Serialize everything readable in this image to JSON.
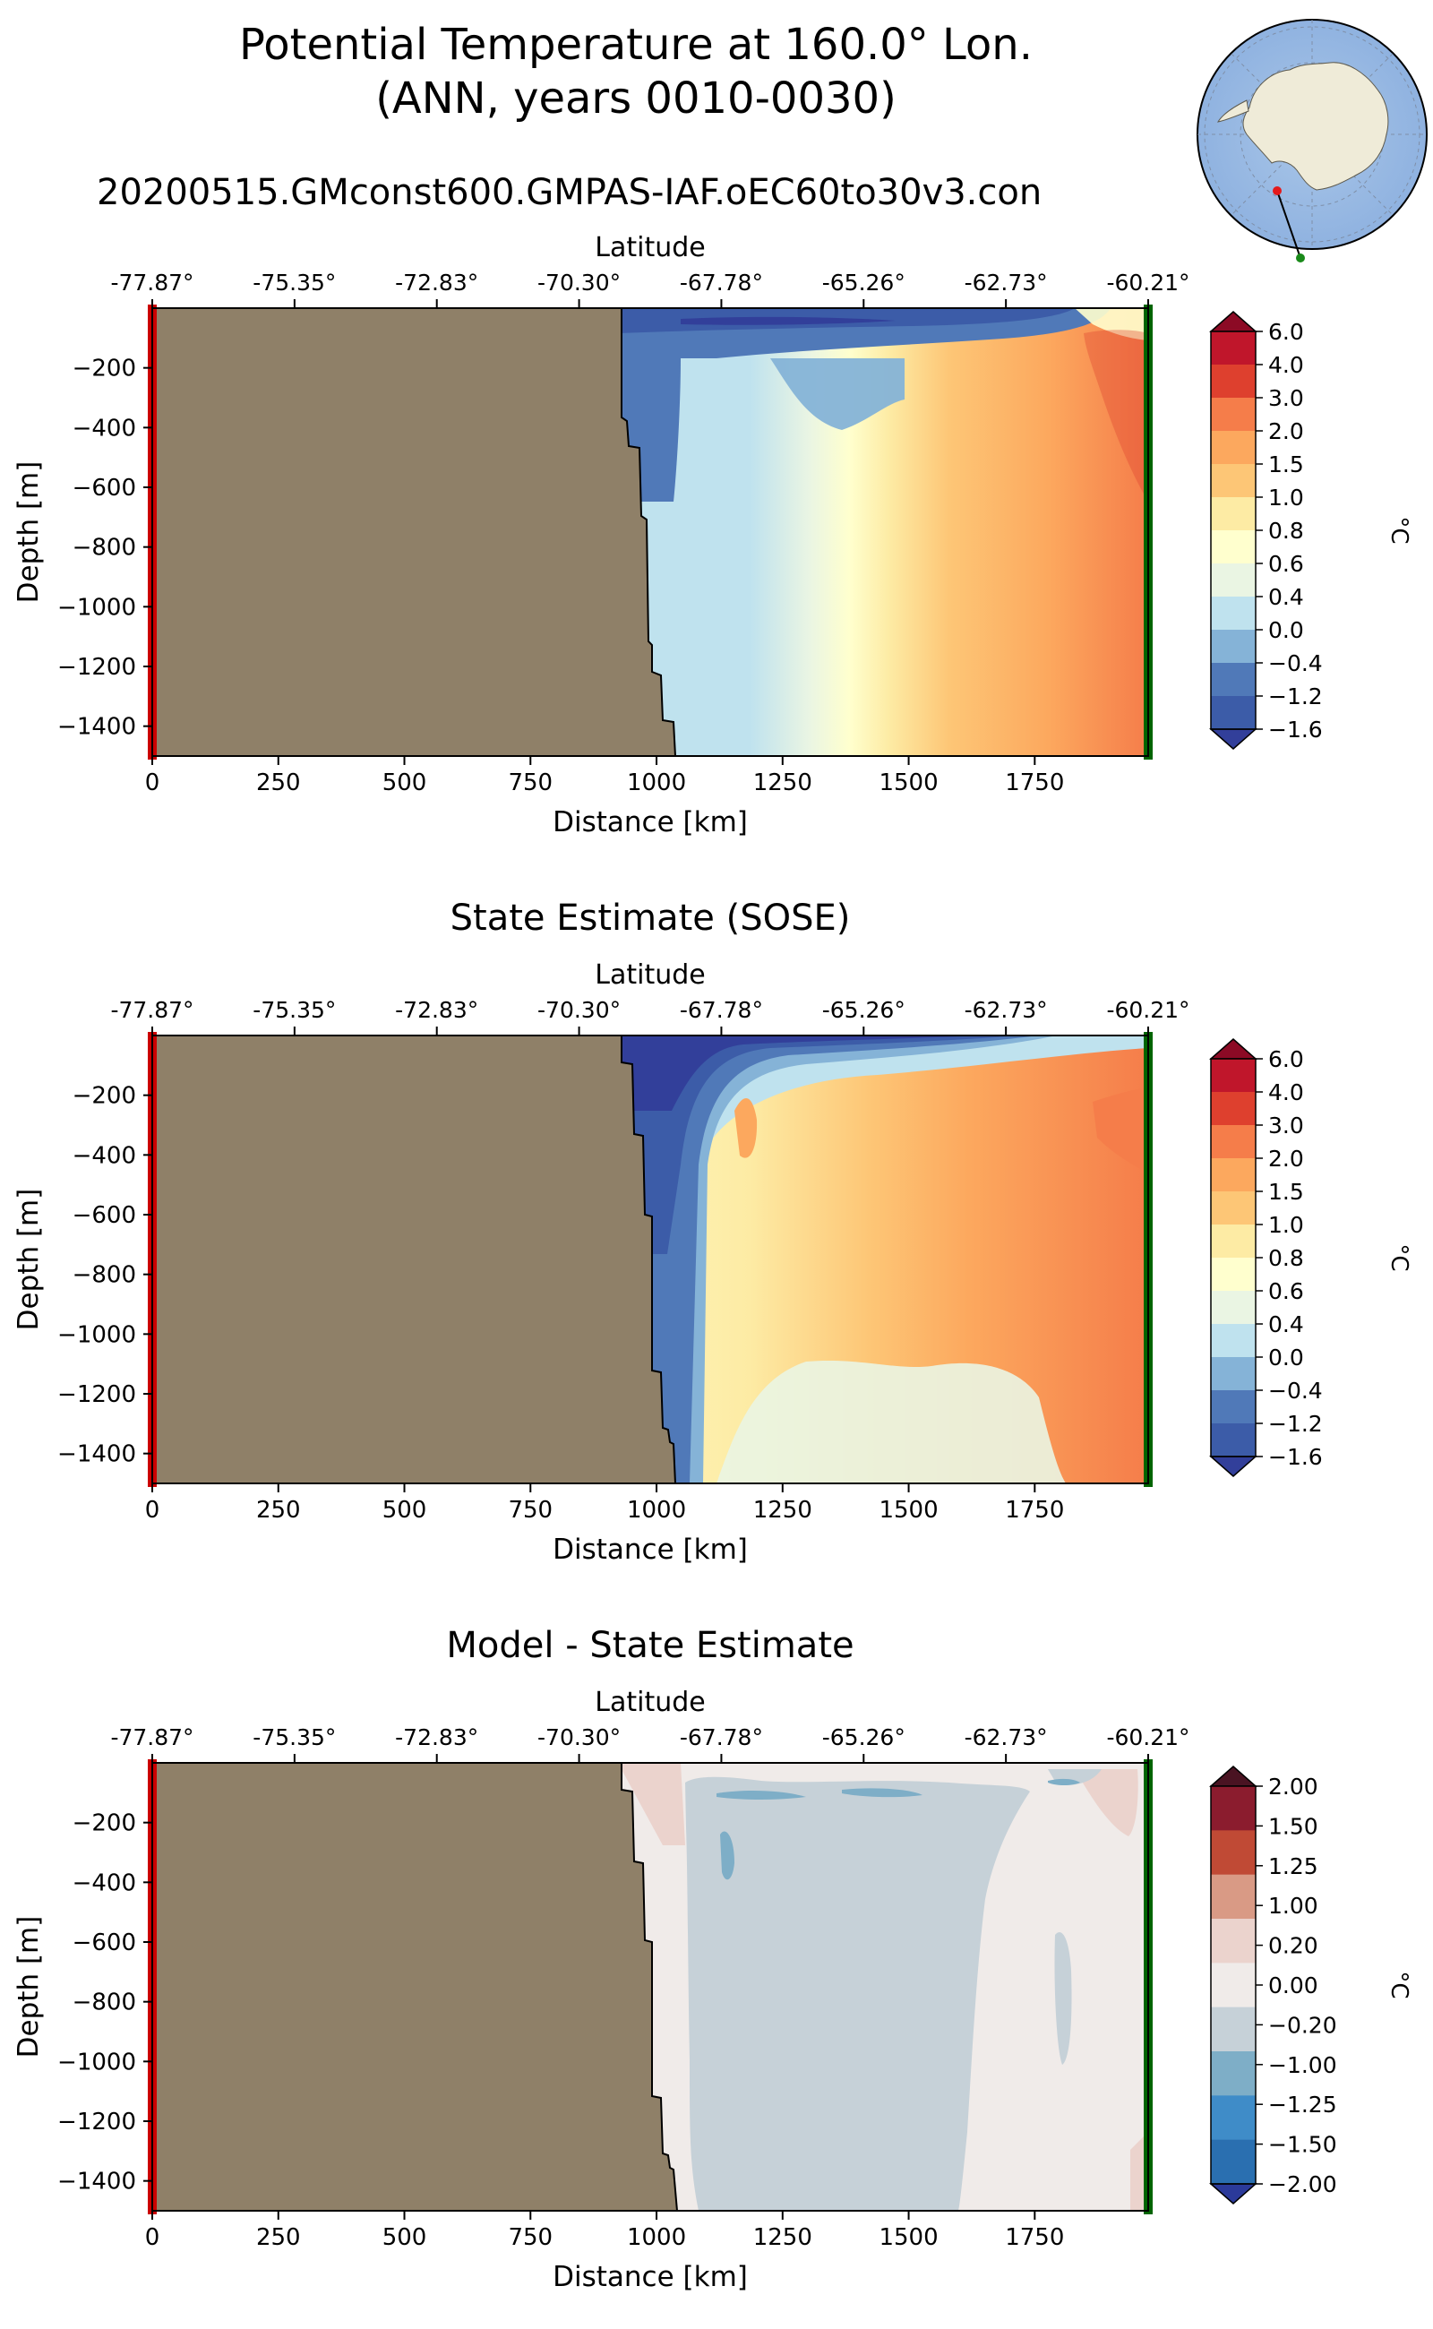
{
  "figure": {
    "title_line1": "Potential Temperature at 160.0° Lon.",
    "title_line2": "(ANN, years 0010-0030)",
    "subtitle": "20200515.GMconst600.GMPAS-IAF.oEC60to30v3.con"
  },
  "inset_map": {
    "projection": "south-polar-stereographic",
    "feature": "Antarctica",
    "marker_start_color": "#e41a1c",
    "marker_end_color": "#1a8a1a"
  },
  "colors": {
    "land": "#8f8068",
    "start_line": "#cc0000",
    "end_line": "#006400",
    "temp_levels": [
      "#323f9a",
      "#3c5ca8",
      "#5079b8",
      "#85b3d7",
      "#bfe2ee",
      "#eaf5e3",
      "#ffffce",
      "#fdeba4",
      "#fdc676",
      "#fca85e",
      "#f57d4a",
      "#de402e",
      "#c0162b",
      "#8c0a25"
    ],
    "diff_levels": [
      "#2b3a9a",
      "#2a6fb0",
      "#3f8cc8",
      "#7eaec7",
      "#c6d1d8",
      "#f0ebe9",
      "#ebd3cd",
      "#d99a85",
      "#c04a35",
      "#8b1c2e",
      "#4a1322"
    ]
  },
  "chart_data": [
    {
      "type": "heatmap",
      "panel": "model",
      "title": "",
      "top_axis_label": "Latitude",
      "top_ticks": [
        "-77.87°",
        "-75.35°",
        "-72.83°",
        "-70.30°",
        "-67.78°",
        "-65.26°",
        "-62.73°",
        "-60.21°"
      ],
      "xlabel": "Distance [km]",
      "ylabel": "Depth [m]",
      "xlim": [
        0,
        1975
      ],
      "ylim": [
        -1500,
        0
      ],
      "x_ticks": [
        0,
        250,
        500,
        750,
        1000,
        1250,
        1500,
        1750
      ],
      "y_ticks": [
        -200,
        -400,
        -600,
        -800,
        -1000,
        -1200,
        -1400
      ],
      "colorbar": {
        "label": "°C",
        "ticks": [
          "6.0",
          "4.0",
          "3.0",
          "2.0",
          "1.5",
          "1.0",
          "0.8",
          "0.6",
          "0.4",
          "0.0",
          "−0.4",
          "−1.2",
          "−1.6"
        ]
      },
      "land_boundary_km": [
        [
          0,
          925
        ],
        [
          -30,
          925
        ],
        [
          -80,
          935
        ],
        [
          -120,
          950
        ],
        [
          -150,
          970
        ],
        [
          -180,
          975
        ],
        [
          -200,
          985
        ],
        [
          -250,
          990
        ],
        [
          -300,
          1000
        ],
        [
          -360,
          1005
        ],
        [
          -420,
          1015
        ],
        [
          -450,
          1020
        ],
        [
          -520,
          1030
        ],
        [
          -580,
          1040
        ]
      ],
      "value_at_surface": {
        "1000-1500km": -1.6,
        "1900km": 0.6
      },
      "warmest_core_c": 3.0
    },
    {
      "type": "heatmap",
      "panel": "sose",
      "title": "State Estimate (SOSE)",
      "top_axis_label": "Latitude",
      "top_ticks": [
        "-77.87°",
        "-75.35°",
        "-72.83°",
        "-70.30°",
        "-67.78°",
        "-65.26°",
        "-62.73°",
        "-60.21°"
      ],
      "xlabel": "Distance [km]",
      "ylabel": "Depth [m]",
      "xlim": [
        0,
        1975
      ],
      "ylim": [
        -1500,
        0
      ],
      "x_ticks": [
        0,
        250,
        500,
        750,
        1000,
        1250,
        1500,
        1750
      ],
      "y_ticks": [
        -200,
        -400,
        -600,
        -800,
        -1000,
        -1200,
        -1400
      ],
      "colorbar": {
        "label": "°C",
        "ticks": [
          "6.0",
          "4.0",
          "3.0",
          "2.0",
          "1.5",
          "1.0",
          "0.8",
          "0.6",
          "0.4",
          "0.0",
          "−0.4",
          "−1.2",
          "−1.6"
        ]
      },
      "warmest_core_c": 3.0
    },
    {
      "type": "heatmap",
      "panel": "difference",
      "title": "Model - State Estimate",
      "top_axis_label": "Latitude",
      "top_ticks": [
        "-77.87°",
        "-75.35°",
        "-72.83°",
        "-70.30°",
        "-67.78°",
        "-65.26°",
        "-62.73°",
        "-60.21°"
      ],
      "xlabel": "Distance [km]",
      "ylabel": "Depth [m]",
      "xlim": [
        0,
        1975
      ],
      "ylim": [
        -1500,
        0
      ],
      "x_ticks": [
        0,
        250,
        500,
        750,
        1000,
        1250,
        1500,
        1750
      ],
      "y_ticks": [
        -200,
        -400,
        -600,
        -800,
        -1000,
        -1200,
        -1400
      ],
      "colorbar": {
        "label": "°C",
        "ticks": [
          "2.00",
          "1.50",
          "1.25",
          "1.00",
          "0.20",
          "0.00",
          "−0.20",
          "−1.00",
          "−1.25",
          "−1.50",
          "−2.00"
        ]
      }
    }
  ]
}
